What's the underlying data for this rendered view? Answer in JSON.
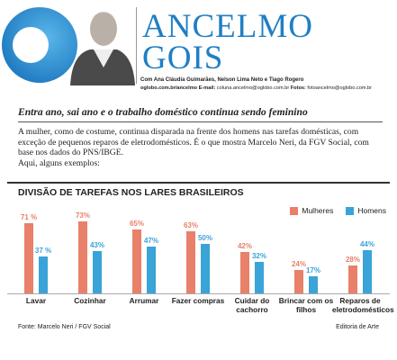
{
  "header": {
    "column_name_1": "ANCELMO",
    "column_name_2": "GOIS",
    "credits": "Com Ana Cláudia Guimarães, Nelson Lima Neto e Tiago Rogero",
    "website": "oglobo.com.br/ancelmo",
    "email_label": "E-mail:",
    "email": "coluna.ancelmo@oglobo.com.br",
    "photos_label": "Fotos:",
    "photos_email": "fotoancelmo@oglobo.com.br"
  },
  "article": {
    "headline": "Entra ano, sai ano e o trabalho doméstico continua sendo feminino",
    "paragraphs": [
      "A mulher, como de costume, continua disparada na frente dos homens nas tarefas domésticas, com exceção de pequenos reparos de eletrodomésticos. É o que mostra Marcelo Neri, da FGV Social, com base nos dados do PNS/IBGE.",
      "Aqui, alguns exemplos:"
    ]
  },
  "chart_data": {
    "type": "bar",
    "title": "DIVISÃO DE TAREFAS NOS LARES BRASILEIROS",
    "categories": [
      "Lavar",
      "Cozinhar",
      "Arrumar",
      "Fazer compras",
      "Cuidar do cachorro",
      "Brincar com os filhos",
      "Reparos de eletrodomésticos"
    ],
    "series": [
      {
        "name": "Mulheres",
        "color": "#e8806a",
        "values": [
          71,
          73,
          65,
          63,
          42,
          24,
          28
        ],
        "value_labels": [
          "71 %",
          "73%",
          "65%",
          "63%",
          "42%",
          "24%",
          "28%"
        ]
      },
      {
        "name": "Homens",
        "color": "#3aa3d8",
        "values": [
          37,
          43,
          47,
          50,
          32,
          17,
          44
        ],
        "value_labels": [
          "37 %",
          "43%",
          "47%",
          "50%",
          "32%",
          "17%",
          "44%"
        ]
      }
    ],
    "legend": "top-right",
    "source": "Fonte: Marcelo Neri / FGV Social",
    "credit": "Editoria de Arte"
  }
}
